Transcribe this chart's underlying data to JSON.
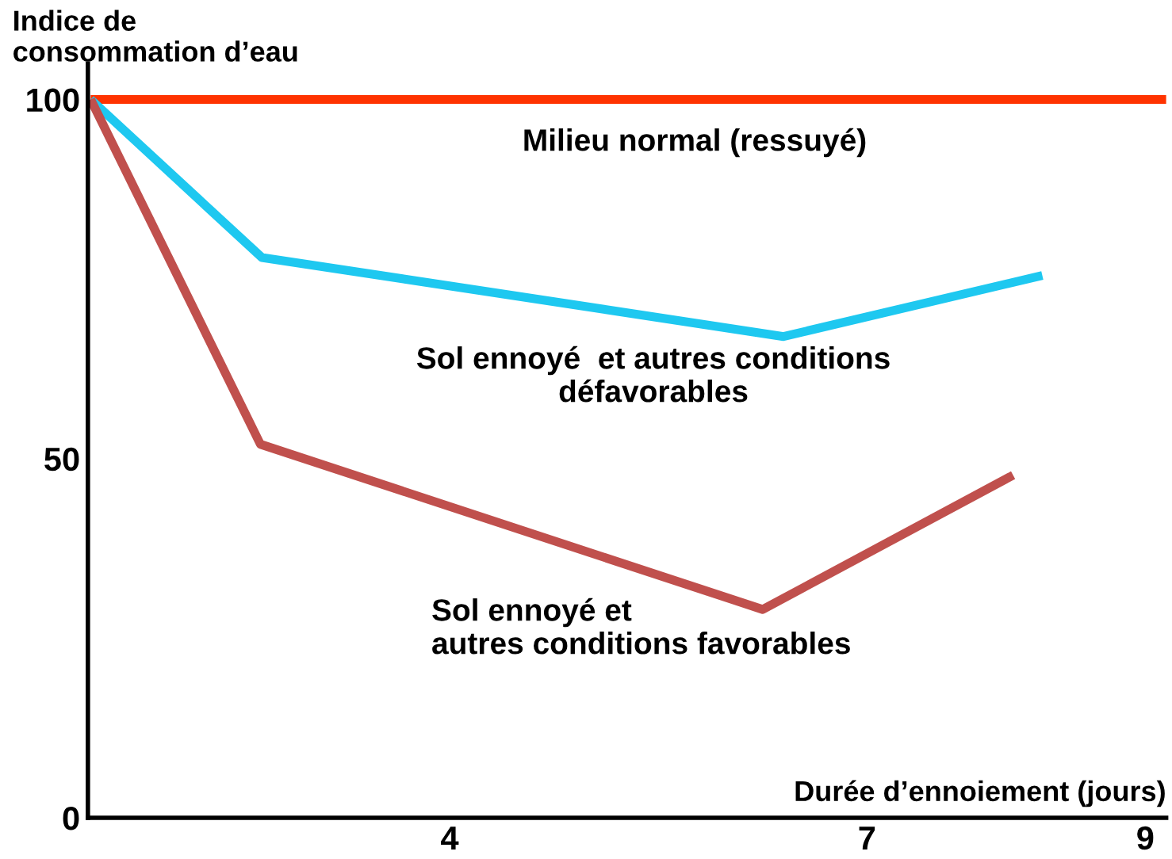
{
  "chart_data": {
    "type": "line",
    "ylabel": "Indice de\nconsommation d’eau",
    "xlabel": "Durée d’ennoiement (jours)",
    "xlim": [
      1.4,
      9.15
    ],
    "xticks": [
      4,
      7,
      9
    ],
    "ylim": [
      0,
      105
    ],
    "yticks": [
      0,
      50,
      100
    ],
    "grid": false,
    "legend": false,
    "marker": "none",
    "line_style": "solid",
    "series": [
      {
        "color": "#ff3300",
        "x": [
          1.42,
          9.15
        ],
        "values": [
          100,
          100
        ]
      },
      {
        "color": "#1ec8f0",
        "x": [
          1.42,
          2.65,
          6.4,
          8.26
        ],
        "values": [
          100,
          78,
          67,
          75.5
        ]
      },
      {
        "color": "#c0504d",
        "x": [
          1.42,
          2.64,
          6.25,
          8.05
        ],
        "values": [
          100,
          52,
          29,
          47.7
        ]
      }
    ],
    "annotations": [
      "Milieu normal (ressuyé)",
      "Sol ennoyé  et autres conditions\ndéfavorables",
      "Sol ennoyé et\nautres conditions favorables"
    ]
  }
}
